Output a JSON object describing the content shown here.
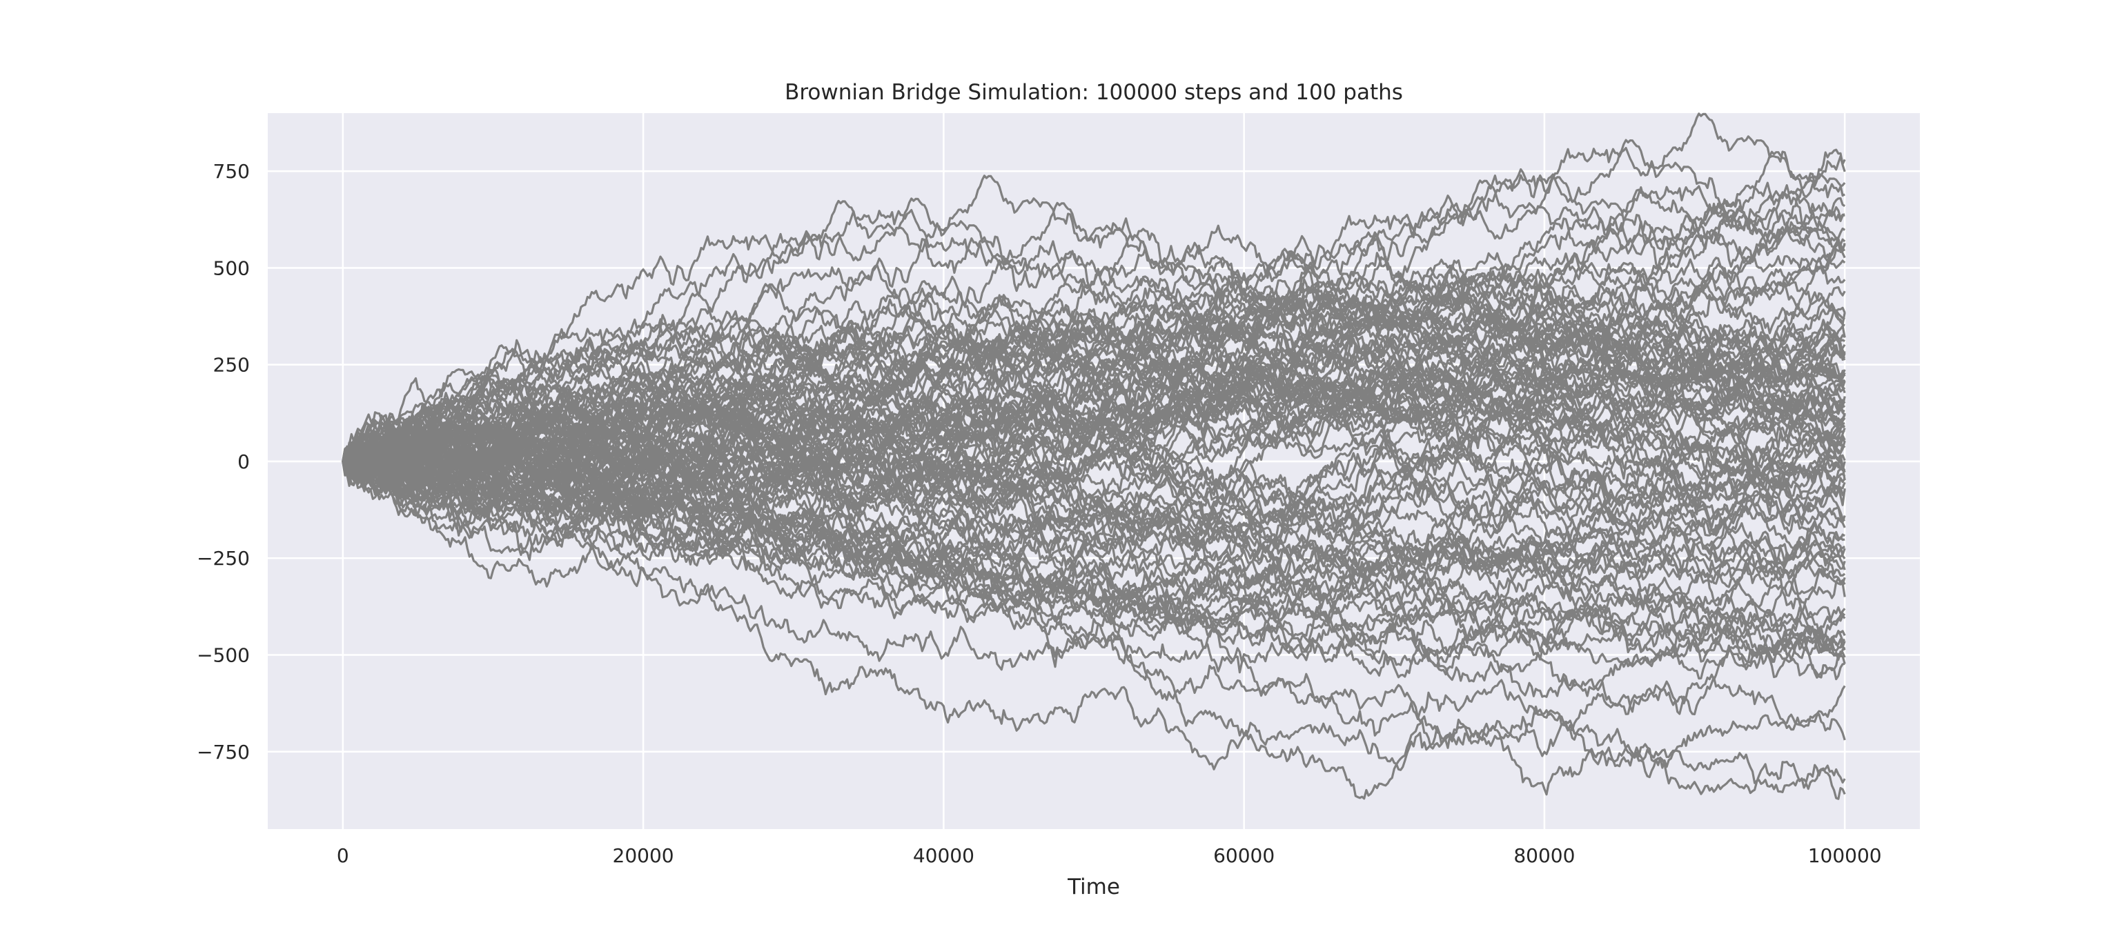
{
  "chart_data": {
    "type": "line",
    "title": "Brownian Bridge Simulation: 100000 steps and 100 paths",
    "xlabel": "Time",
    "ylabel": "",
    "xlim": [
      -5000,
      105000
    ],
    "ylim": [
      -950,
      900
    ],
    "xticks": [
      0,
      20000,
      40000,
      60000,
      80000,
      100000
    ],
    "xtick_labels": [
      "0",
      "20000",
      "40000",
      "60000",
      "80000",
      "100000"
    ],
    "yticks": [
      -750,
      -500,
      -250,
      0,
      250,
      500,
      750
    ],
    "ytick_labels": [
      "−750",
      "−500",
      "−250",
      "0",
      "250",
      "500",
      "750"
    ],
    "grid": true,
    "legend": "none",
    "series_color": "#808080",
    "background_color": "#eaeaf2",
    "grid_color": "#ffffff",
    "n_steps": 100000,
    "n_paths": 100,
    "series_endpoints": [
      780,
      720,
      660,
      560,
      470,
      320,
      220,
      130,
      60,
      0,
      -70,
      -140,
      -220,
      -300,
      -380,
      -460,
      -580,
      -720,
      -820,
      -860
    ]
  }
}
